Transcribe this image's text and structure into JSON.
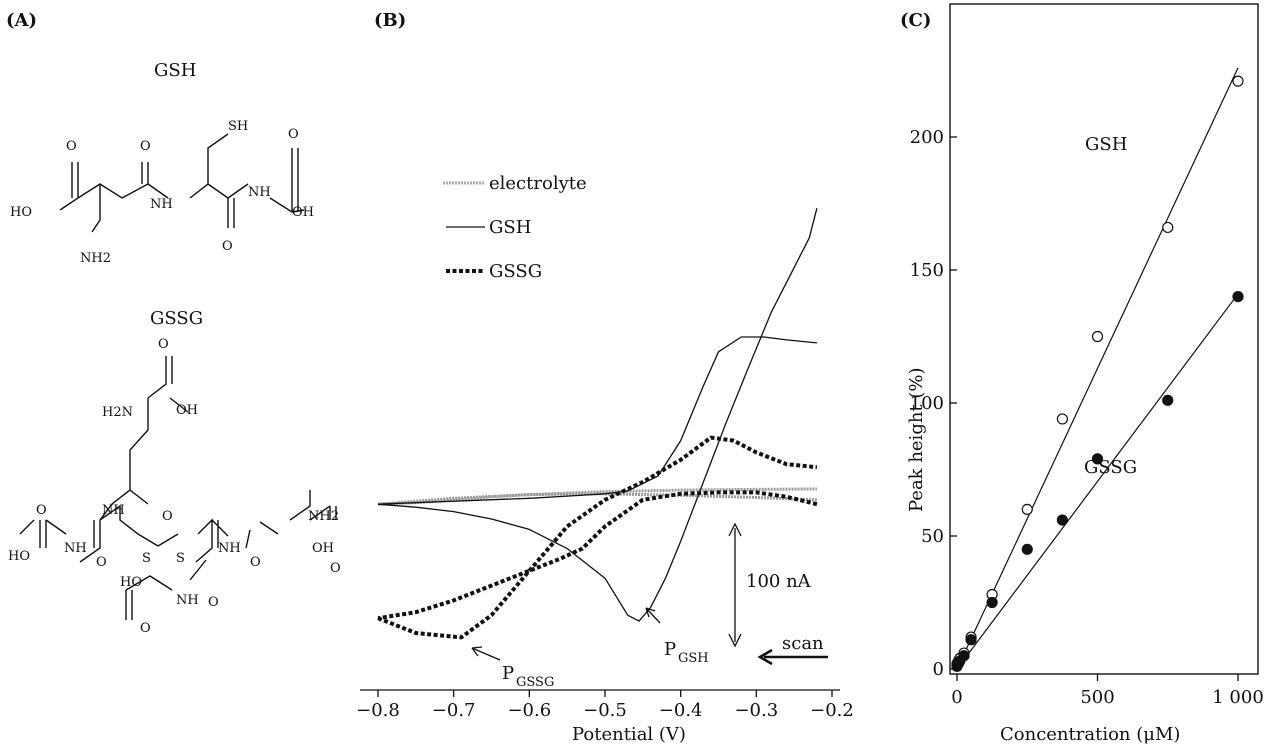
{
  "panels": {
    "a": "(A)",
    "b": "(B)",
    "c": "(C)"
  },
  "structures": {
    "gsh_title": "GSH",
    "gssg_title": "GSSG",
    "atoms": {
      "o": "O",
      "ho": "HO",
      "oh": "OH",
      "nh": "NH",
      "nh2": "NH2",
      "h2n": "H2N",
      "sh": "SH",
      "s": "S"
    }
  },
  "chart_data": [
    {
      "panel": "(B)",
      "type": "line",
      "title": "",
      "xlabel": "Potential (V)",
      "ylabel": "",
      "xlim": [
        -0.8,
        -0.2
      ],
      "xticks": [
        "−0.8",
        "−0.7",
        "−0.6",
        "−0.5",
        "−0.4",
        "−0.3",
        "−0.2"
      ],
      "legend": [
        "electrolyte",
        "GSH",
        "GSSG"
      ],
      "scale_bar": "100 nA",
      "scan_label": "scan",
      "peaks": [
        {
          "label": "P",
          "sub": "GSSG",
          "x": -0.69
        },
        {
          "label": "P",
          "sub": "GSH",
          "x": -0.46
        }
      ],
      "series": [
        {
          "name": "electrolyte",
          "style": "gray-dashed",
          "x": [
            -0.8,
            -0.75,
            -0.7,
            -0.65,
            -0.6,
            -0.55,
            -0.5,
            -0.45,
            -0.4,
            -0.35,
            -0.3,
            -0.25,
            -0.22
          ],
          "y": [
            85,
            86,
            88,
            90,
            91.5,
            92.5,
            93.5,
            94,
            94.5,
            94.8,
            95,
            95.2,
            95.3
          ]
        },
        {
          "name": "electrolyte-return",
          "style": "gray-dashed",
          "x": [
            -0.22,
            -0.3,
            -0.4,
            -0.5,
            -0.6,
            -0.7,
            -0.8
          ],
          "y": [
            88,
            89.5,
            91,
            92,
            91.5,
            89,
            85
          ]
        },
        {
          "name": "GSH",
          "style": "solid",
          "x": [
            -0.8,
            -0.7,
            -0.6,
            -0.55,
            -0.5,
            -0.47,
            -0.43,
            -0.4,
            -0.37,
            -0.35,
            -0.32,
            -0.29,
            -0.26,
            -0.22
          ],
          "y": [
            85,
            87,
            89,
            90.5,
            92,
            94,
            104,
            128,
            165,
            188,
            198,
            198,
            196,
            194
          ]
        },
        {
          "name": "GSH-return",
          "style": "solid",
          "x": [
            -0.22,
            -0.23,
            -0.25,
            -0.28,
            -0.31,
            -0.34,
            -0.37,
            -0.4,
            -0.42,
            -0.44,
            -0.455,
            -0.47,
            -0.5,
            -0.55,
            -0.6,
            -0.65,
            -0.7,
            -0.75,
            -0.8
          ],
          "y": [
            285,
            265,
            245,
            215,
            178,
            140,
            100,
            60,
            35,
            15,
            6,
            10,
            35,
            55,
            68,
            75,
            80,
            83,
            85
          ]
        },
        {
          "name": "GSSG",
          "style": "dotted",
          "x": [
            -0.8,
            -0.75,
            -0.69,
            -0.65,
            -0.6,
            -0.55,
            -0.5,
            -0.45,
            -0.4,
            -0.36,
            -0.33,
            -0.3,
            -0.26,
            -0.22
          ],
          "y": [
            8,
            -2,
            -5,
            10,
            40,
            70,
            88,
            100,
            115,
            130,
            128,
            120,
            112,
            110
          ]
        },
        {
          "name": "GSSG-return",
          "style": "dotted",
          "x": [
            -0.22,
            -0.26,
            -0.3,
            -0.35,
            -0.4,
            -0.45,
            -0.5,
            -0.53,
            -0.56,
            -0.6,
            -0.65,
            -0.7,
            -0.75,
            -0.8
          ],
          "y": [
            85,
            90,
            93,
            93,
            92,
            88,
            70,
            55,
            48,
            40,
            30,
            20,
            12,
            8
          ]
        }
      ]
    },
    {
      "panel": "(C)",
      "type": "scatter",
      "title": "",
      "xlabel": "Concentration (μM)",
      "ylabel": "Peak height (%)",
      "xlim": [
        0,
        1000
      ],
      "ylim": [
        0,
        225
      ],
      "xticks": [
        "0",
        "500",
        "1 000"
      ],
      "yticks": [
        "0",
        "50",
        "100",
        "150",
        "200"
      ],
      "series": [
        {
          "name": "GSH",
          "marker": "open-circle",
          "x": [
            0,
            5,
            10,
            25,
            50,
            125,
            250,
            375,
            500,
            750,
            1000
          ],
          "y": [
            2,
            3,
            4,
            6,
            12,
            28,
            60,
            94,
            125,
            166,
            221
          ],
          "fit": {
            "x": [
              0,
              1000
            ],
            "y": [
              0,
              226
            ]
          }
        },
        {
          "name": "GSSG",
          "marker": "filled-circle",
          "x": [
            0,
            5,
            10,
            25,
            50,
            125,
            250,
            375,
            500,
            750,
            1000
          ],
          "y": [
            1,
            2,
            3,
            5,
            11,
            25,
            45,
            56,
            79,
            101,
            140
          ],
          "fit": {
            "x": [
              0,
              1000
            ],
            "y": [
              0,
              141
            ]
          }
        }
      ]
    }
  ]
}
